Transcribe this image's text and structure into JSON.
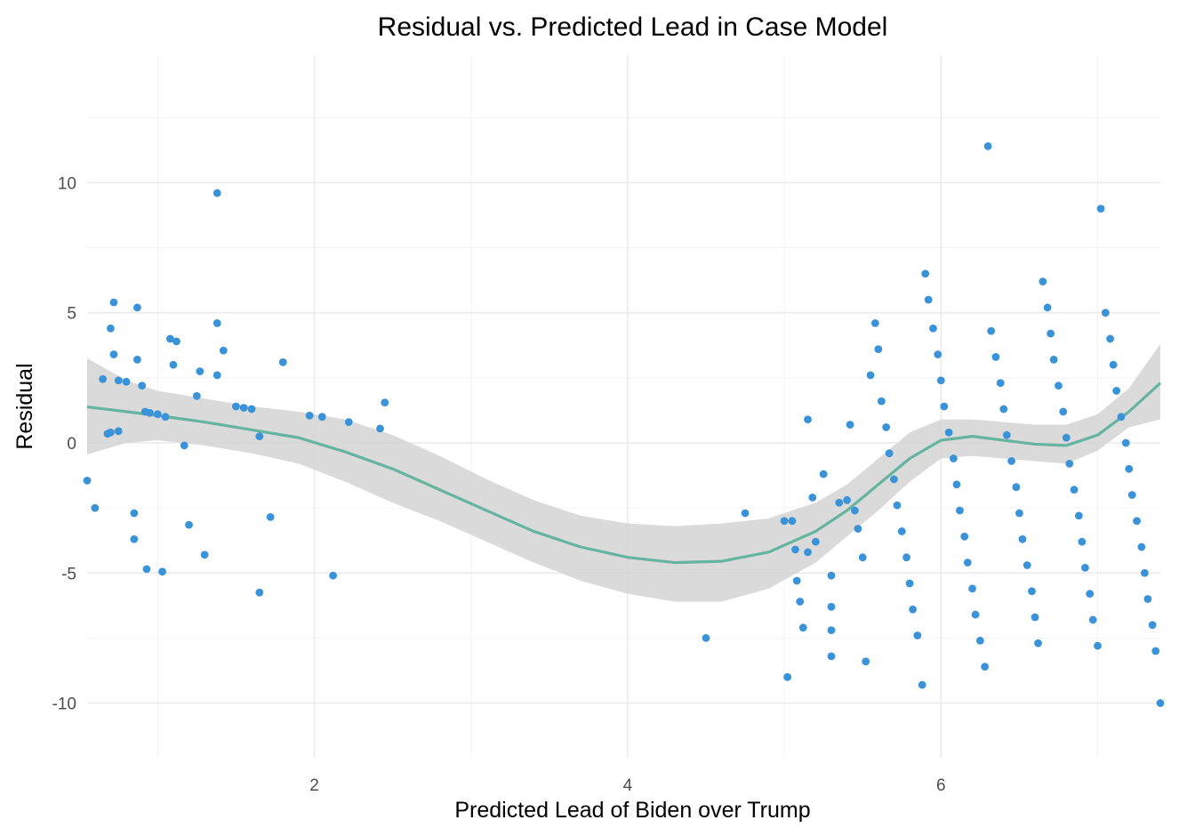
{
  "chart_data": {
    "type": "scatter",
    "title": "Residual vs. Predicted Lead in Case Model",
    "xlabel": "Predicted Lead of Biden over Trump",
    "ylabel": "Residual",
    "xlim": [
      0.55,
      7.4
    ],
    "ylim": [
      -12.1,
      14.9
    ],
    "x_ticks": [
      2,
      4,
      6
    ],
    "x_tick_labels": [
      "2",
      "4",
      "6"
    ],
    "y_ticks": [
      -10,
      -5,
      0,
      5,
      10
    ],
    "y_tick_labels": [
      "-10",
      "-5",
      "0",
      "5",
      "10"
    ],
    "grid": true,
    "legend": "none",
    "point_color": "#3a93d8",
    "smooth_color": "#66b3a0",
    "ribbon_color": "#d3d3d3",
    "series": [
      {
        "type": "scatter",
        "points": [
          [
            0.55,
            -1.45
          ],
          [
            0.6,
            -2.5
          ],
          [
            0.65,
            2.45
          ],
          [
            0.68,
            0.35
          ],
          [
            0.7,
            4.4
          ],
          [
            0.7,
            0.4
          ],
          [
            0.72,
            5.4
          ],
          [
            0.72,
            3.4
          ],
          [
            0.75,
            2.4
          ],
          [
            0.75,
            0.45
          ],
          [
            0.8,
            2.35
          ],
          [
            0.85,
            -2.7
          ],
          [
            0.85,
            -3.7
          ],
          [
            0.87,
            5.2
          ],
          [
            0.87,
            3.2
          ],
          [
            0.9,
            2.2
          ],
          [
            0.92,
            1.2
          ],
          [
            0.93,
            -4.85
          ],
          [
            0.95,
            1.15
          ],
          [
            1.0,
            1.1
          ],
          [
            1.03,
            -4.95
          ],
          [
            1.05,
            1.0
          ],
          [
            1.08,
            4.0
          ],
          [
            1.1,
            3.0
          ],
          [
            1.12,
            3.9
          ],
          [
            1.17,
            -0.1
          ],
          [
            1.2,
            -3.15
          ],
          [
            1.25,
            1.8
          ],
          [
            1.27,
            2.75
          ],
          [
            1.3,
            -4.3
          ],
          [
            1.38,
            9.6
          ],
          [
            1.38,
            4.6
          ],
          [
            1.38,
            2.6
          ],
          [
            1.42,
            3.55
          ],
          [
            1.5,
            1.4
          ],
          [
            1.55,
            1.35
          ],
          [
            1.6,
            1.3
          ],
          [
            1.65,
            -5.75
          ],
          [
            1.65,
            0.25
          ],
          [
            1.72,
            -2.85
          ],
          [
            1.8,
            3.1
          ],
          [
            1.97,
            1.05
          ],
          [
            2.05,
            1.0
          ],
          [
            2.12,
            -5.1
          ],
          [
            2.22,
            0.8
          ],
          [
            2.42,
            0.55
          ],
          [
            2.45,
            1.55
          ],
          [
            4.5,
            -7.5
          ],
          [
            4.75,
            -2.7
          ],
          [
            5.0,
            -3.0
          ],
          [
            5.02,
            -9.0
          ],
          [
            5.05,
            -3.0
          ],
          [
            5.07,
            -4.1
          ],
          [
            5.08,
            -5.3
          ],
          [
            5.1,
            -6.1
          ],
          [
            5.12,
            -7.1
          ],
          [
            5.15,
            -4.2
          ],
          [
            5.15,
            0.9
          ],
          [
            5.18,
            -2.1
          ],
          [
            5.2,
            -3.8
          ],
          [
            5.25,
            -1.2
          ],
          [
            5.3,
            -8.2
          ],
          [
            5.3,
            -6.3
          ],
          [
            5.3,
            -7.2
          ],
          [
            5.3,
            -5.1
          ],
          [
            5.35,
            -2.3
          ],
          [
            5.4,
            -2.2
          ],
          [
            5.42,
            0.7
          ],
          [
            5.45,
            -2.6
          ],
          [
            5.47,
            -3.3
          ],
          [
            5.5,
            -4.4
          ],
          [
            5.52,
            -8.4
          ],
          [
            5.55,
            2.6
          ],
          [
            5.58,
            4.6
          ],
          [
            5.6,
            3.6
          ],
          [
            5.62,
            1.6
          ],
          [
            5.65,
            0.6
          ],
          [
            5.67,
            -0.4
          ],
          [
            5.7,
            -1.4
          ],
          [
            5.72,
            -2.4
          ],
          [
            5.75,
            -3.4
          ],
          [
            5.78,
            -4.4
          ],
          [
            5.8,
            -5.4
          ],
          [
            5.82,
            -6.4
          ],
          [
            5.85,
            -7.4
          ],
          [
            5.88,
            -9.3
          ],
          [
            5.9,
            6.5
          ],
          [
            5.92,
            5.5
          ],
          [
            5.95,
            4.4
          ],
          [
            5.98,
            3.4
          ],
          [
            6.0,
            2.4
          ],
          [
            6.02,
            1.4
          ],
          [
            6.05,
            0.4
          ],
          [
            6.08,
            -0.6
          ],
          [
            6.1,
            -1.6
          ],
          [
            6.12,
            -2.6
          ],
          [
            6.15,
            -3.6
          ],
          [
            6.17,
            -4.6
          ],
          [
            6.2,
            -5.6
          ],
          [
            6.22,
            -6.6
          ],
          [
            6.25,
            -7.6
          ],
          [
            6.28,
            -8.6
          ],
          [
            6.3,
            11.4
          ],
          [
            6.32,
            4.3
          ],
          [
            6.35,
            3.3
          ],
          [
            6.38,
            2.3
          ],
          [
            6.4,
            1.3
          ],
          [
            6.42,
            0.3
          ],
          [
            6.45,
            -0.7
          ],
          [
            6.48,
            -1.7
          ],
          [
            6.5,
            -2.7
          ],
          [
            6.52,
            -3.7
          ],
          [
            6.55,
            -4.7
          ],
          [
            6.58,
            -5.7
          ],
          [
            6.6,
            -6.7
          ],
          [
            6.62,
            -7.7
          ],
          [
            6.65,
            6.2
          ],
          [
            6.68,
            5.2
          ],
          [
            6.7,
            4.2
          ],
          [
            6.72,
            3.2
          ],
          [
            6.75,
            2.2
          ],
          [
            6.78,
            1.2
          ],
          [
            6.8,
            0.2
          ],
          [
            6.82,
            -0.8
          ],
          [
            6.85,
            -1.8
          ],
          [
            6.88,
            -2.8
          ],
          [
            6.9,
            -3.8
          ],
          [
            6.92,
            -4.8
          ],
          [
            6.95,
            -5.8
          ],
          [
            6.97,
            -6.8
          ],
          [
            7.0,
            -7.8
          ],
          [
            7.02,
            9.0
          ],
          [
            7.05,
            5.0
          ],
          [
            7.08,
            4.0
          ],
          [
            7.1,
            3.0
          ],
          [
            7.12,
            2.0
          ],
          [
            7.15,
            1.0
          ],
          [
            7.18,
            0.0
          ],
          [
            7.2,
            -1.0
          ],
          [
            7.22,
            -2.0
          ],
          [
            7.25,
            -3.0
          ],
          [
            7.28,
            -4.0
          ],
          [
            7.3,
            -5.0
          ],
          [
            7.32,
            -6.0
          ],
          [
            7.35,
            -7.0
          ],
          [
            7.37,
            -8.0
          ],
          [
            7.4,
            -10.0
          ]
        ]
      }
    ],
    "smooth": [
      [
        0.55,
        1.38
      ],
      [
        0.8,
        1.2
      ],
      [
        1.0,
        1.05
      ],
      [
        1.3,
        0.8
      ],
      [
        1.6,
        0.5
      ],
      [
        1.9,
        0.2
      ],
      [
        2.2,
        -0.35
      ],
      [
        2.5,
        -1.0
      ],
      [
        2.8,
        -1.8
      ],
      [
        3.1,
        -2.6
      ],
      [
        3.4,
        -3.4
      ],
      [
        3.7,
        -4.0
      ],
      [
        4.0,
        -4.4
      ],
      [
        4.3,
        -4.6
      ],
      [
        4.6,
        -4.55
      ],
      [
        4.9,
        -4.2
      ],
      [
        5.2,
        -3.4
      ],
      [
        5.4,
        -2.6
      ],
      [
        5.6,
        -1.6
      ],
      [
        5.8,
        -0.6
      ],
      [
        6.0,
        0.1
      ],
      [
        6.2,
        0.25
      ],
      [
        6.4,
        0.1
      ],
      [
        6.6,
        -0.05
      ],
      [
        6.8,
        -0.1
      ],
      [
        7.0,
        0.3
      ],
      [
        7.2,
        1.2
      ],
      [
        7.4,
        2.3
      ]
    ],
    "ribbon": [
      [
        0.55,
        -0.45,
        3.25
      ],
      [
        0.8,
        0.0,
        2.4
      ],
      [
        1.0,
        0.1,
        2.0
      ],
      [
        1.3,
        -0.1,
        1.7
      ],
      [
        1.6,
        -0.4,
        1.4
      ],
      [
        1.9,
        -0.8,
        1.2
      ],
      [
        2.2,
        -1.5,
        0.9
      ],
      [
        2.5,
        -2.3,
        0.3
      ],
      [
        2.8,
        -3.0,
        -0.5
      ],
      [
        3.1,
        -3.8,
        -1.4
      ],
      [
        3.4,
        -4.6,
        -2.2
      ],
      [
        3.7,
        -5.3,
        -2.8
      ],
      [
        4.0,
        -5.8,
        -3.1
      ],
      [
        4.3,
        -6.1,
        -3.2
      ],
      [
        4.6,
        -6.1,
        -3.1
      ],
      [
        4.9,
        -5.6,
        -2.9
      ],
      [
        5.2,
        -4.6,
        -2.3
      ],
      [
        5.4,
        -3.6,
        -1.6
      ],
      [
        5.6,
        -2.6,
        -0.6
      ],
      [
        5.8,
        -1.5,
        0.4
      ],
      [
        6.0,
        -0.6,
        0.9
      ],
      [
        6.2,
        -0.5,
        0.9
      ],
      [
        6.4,
        -0.6,
        0.8
      ],
      [
        6.6,
        -0.7,
        0.7
      ],
      [
        6.8,
        -0.8,
        0.7
      ],
      [
        7.0,
        -0.3,
        1.1
      ],
      [
        7.2,
        0.6,
        2.1
      ],
      [
        7.4,
        0.9,
        3.8
      ]
    ]
  }
}
